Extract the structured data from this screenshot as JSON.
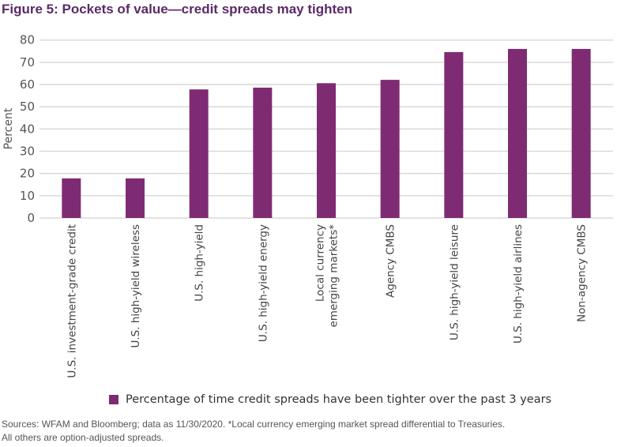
{
  "title": "Figure 5: Pockets of value—credit spreads may tighten",
  "chart_data": {
    "type": "bar",
    "title": "Figure 5: Pockets of value—credit spreads may tighten",
    "ylabel": "Percent",
    "xlabel": "",
    "ylim": [
      0,
      80
    ],
    "yticks": [
      0,
      10,
      20,
      30,
      40,
      50,
      60,
      70,
      80
    ],
    "grid": true,
    "legend_position": "bottom",
    "bar_color": "#7f2b73",
    "categories": [
      "U.S. investment-grade credit",
      "U.S. high-yield wireless",
      "U.S. high-yield",
      "U.S. high-yield energy",
      "Local currency emerging markets*",
      "Agency CMBS",
      "U.S. high-yield leisure",
      "U.S. high-yield airlines",
      "Non-agency CMBS"
    ],
    "category_lines": [
      [
        "U.S. investment-grade credit"
      ],
      [
        "U.S. high-yield wireless"
      ],
      [
        "U.S. high-yield"
      ],
      [
        "U.S. high-yield energy"
      ],
      [
        "Local currency",
        "emerging markets*"
      ],
      [
        "Agency CMBS"
      ],
      [
        "U.S. high-yield leisure"
      ],
      [
        "U.S. high-yield airlines"
      ],
      [
        "Non-agency CMBS"
      ]
    ],
    "series": [
      {
        "name": "Percentage of time credit spreads have been tighter over the past 3 years",
        "values": [
          17.8,
          17.8,
          57.8,
          58.6,
          60.6,
          62.1,
          74.6,
          76.0,
          76.0
        ]
      }
    ]
  },
  "source": [
    "Sources: WFAM and Bloomberg; data as 11/30/2020. *Local currency emerging market spread differential to Treasuries.",
    "All others are option-adjusted spreads."
  ]
}
